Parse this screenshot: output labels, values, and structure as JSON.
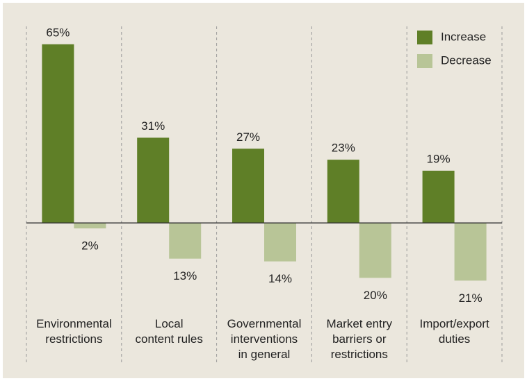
{
  "chart_data": {
    "type": "bar",
    "categories": [
      "Environmental\nrestrictions",
      "Local\ncontent rules",
      "Governmental\ninterventions\nin general",
      "Market entry\nbarriers or\nrestrictions",
      "Import/export\nduties"
    ],
    "series": [
      {
        "name": "Increase",
        "color": "#5f7f27",
        "values": [
          65,
          31,
          27,
          23,
          19
        ],
        "value_labels": [
          "65%",
          "31%",
          "27%",
          "23%",
          "19%"
        ]
      },
      {
        "name": "Decrease",
        "color": "#b8c597",
        "values": [
          -2,
          -13,
          -14,
          -20,
          -21
        ],
        "value_labels": [
          "2%",
          "13%",
          "14%",
          "20%",
          "21%"
        ]
      }
    ],
    "ylim": [
      -30,
      70
    ],
    "legend": "top-right"
  }
}
